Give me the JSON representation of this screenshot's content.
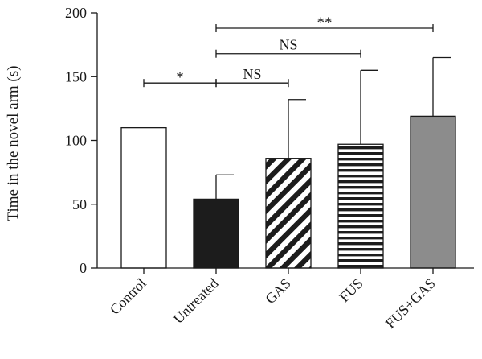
{
  "chart_data": {
    "type": "bar",
    "ylabel": "Time in the novel arm (s)",
    "ylim": [
      0,
      200
    ],
    "yticks": [
      0,
      50,
      100,
      150,
      200
    ],
    "categories": [
      "Control",
      "Untreated",
      "GAS",
      "FUS",
      "FUS+GAS"
    ],
    "values": [
      110,
      54,
      86,
      97,
      119
    ],
    "error_upper": [
      null,
      73,
      132,
      155,
      165
    ],
    "bar_styles": [
      {
        "fill": "white",
        "color": "#ffffff"
      },
      {
        "fill": "solid",
        "color": "#1c1c1c"
      },
      {
        "fill": "diagonal-stripes",
        "color": "#1c1c1c"
      },
      {
        "fill": "horizontal-stripes",
        "color": "#1c1c1c"
      },
      {
        "fill": "solid",
        "color": "#8c8c8c"
      }
    ],
    "annotations": [
      {
        "from": "Control",
        "to": "Untreated",
        "label": "*",
        "y": 145
      },
      {
        "from": "Untreated",
        "to": "GAS",
        "label": "NS",
        "y": 145
      },
      {
        "from": "Untreated",
        "to": "FUS",
        "label": "NS",
        "y": 168
      },
      {
        "from": "Untreated",
        "to": "FUS+GAS",
        "label": "**",
        "y": 188
      }
    ]
  }
}
